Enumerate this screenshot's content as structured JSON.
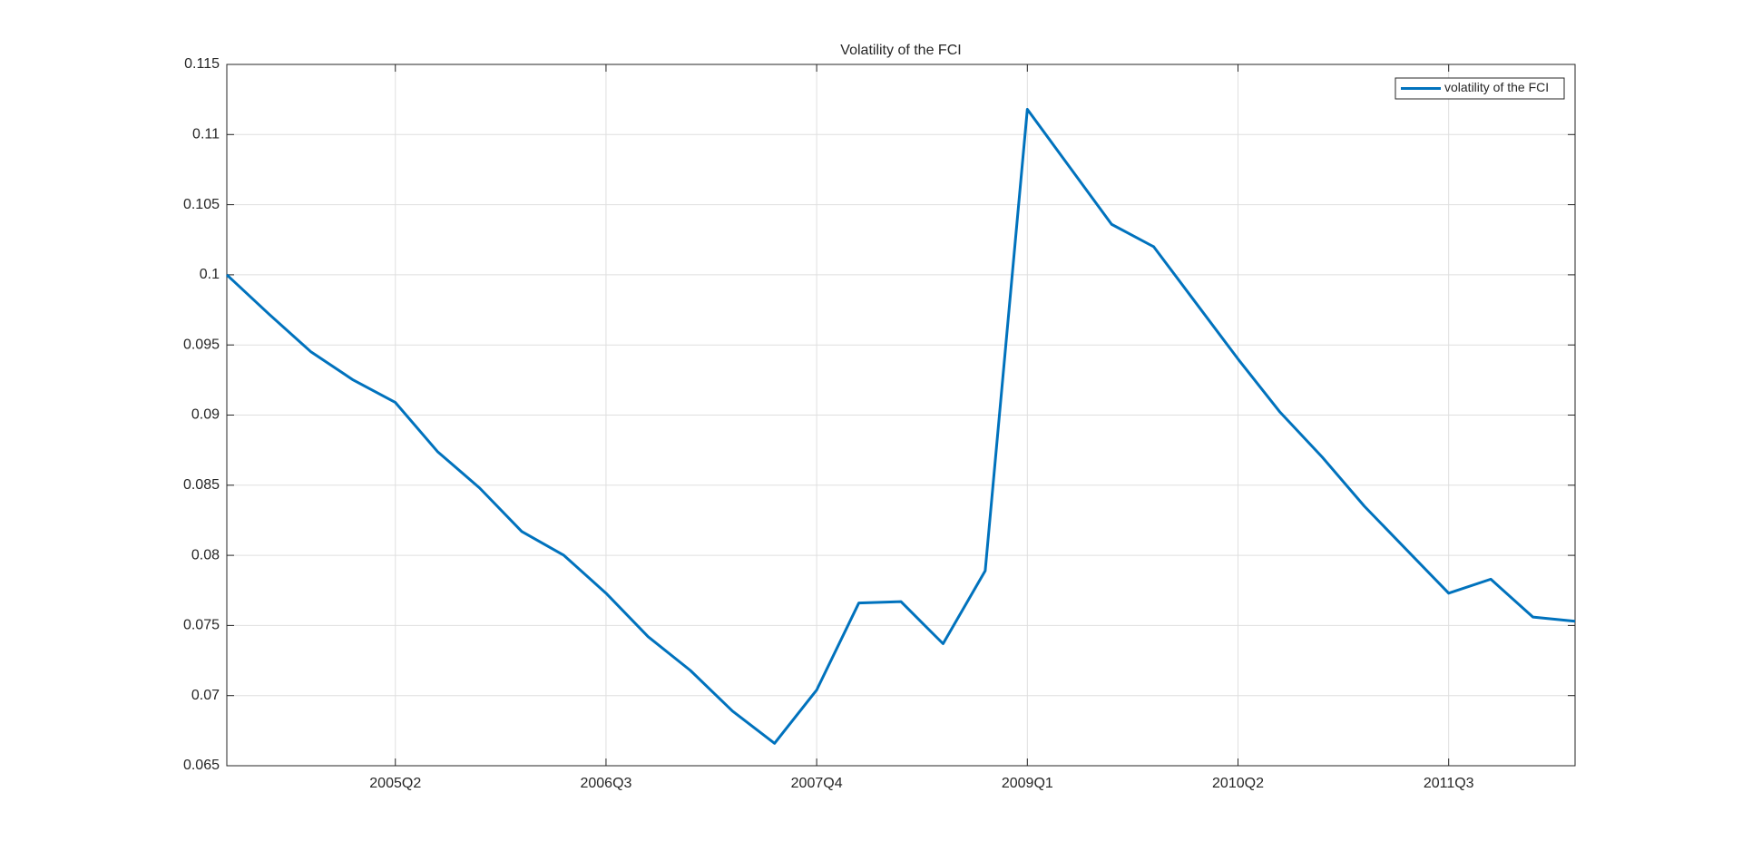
{
  "chart_data": {
    "type": "line",
    "title": "Volatility of the FCI",
    "categories": [
      null,
      null,
      null,
      null,
      "2005Q2",
      null,
      null,
      null,
      null,
      "2006Q3",
      null,
      null,
      null,
      null,
      "2007Q4",
      null,
      null,
      null,
      null,
      "2009Q1",
      null,
      null,
      null,
      null,
      "2010Q2",
      null,
      null,
      null,
      null,
      "2011Q3",
      null,
      null,
      null
    ],
    "series": [
      {
        "name": "volatility of the FCI",
        "color": "#0072bd",
        "values": [
          0.1,
          0.0972,
          0.0945,
          0.0925,
          0.0909,
          0.0874,
          0.0848,
          0.0817,
          0.08,
          0.0773,
          0.0742,
          0.0718,
          0.0689,
          0.0666,
          0.0704,
          0.0766,
          0.0767,
          0.0737,
          0.0789,
          0.1118,
          0.1077,
          0.1036,
          0.102,
          0.098,
          0.094,
          0.0902,
          0.087,
          0.0835,
          0.0804,
          0.0773,
          0.0783,
          0.0756,
          0.0753
        ]
      }
    ],
    "ylim": [
      0.065,
      0.115
    ],
    "yticks": [
      0.065,
      0.07,
      0.075,
      0.08,
      0.085,
      0.09,
      0.095,
      0.1,
      0.105,
      0.11,
      0.115
    ],
    "grid": true,
    "legend": "upper right"
  }
}
